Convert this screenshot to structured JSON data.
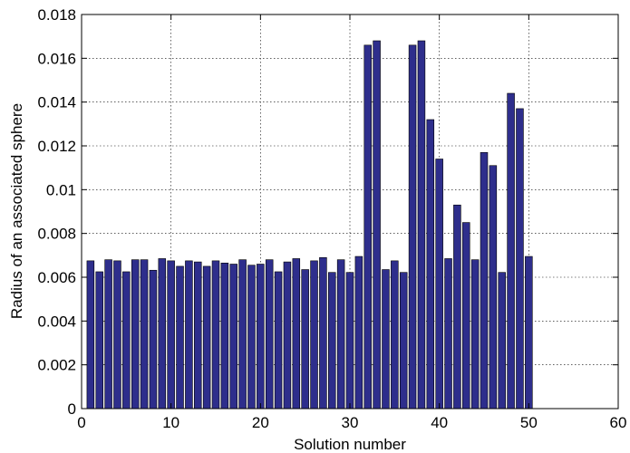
{
  "chart_data": {
    "type": "bar",
    "title": "",
    "xlabel": "Solution number",
    "ylabel": "Radius of an associated sphere",
    "xlim": [
      0,
      60
    ],
    "ylim": [
      0,
      0.018
    ],
    "grid": true,
    "bar_color": "#2e2e8c",
    "x": [
      1,
      2,
      3,
      4,
      5,
      6,
      7,
      8,
      9,
      10,
      11,
      12,
      13,
      14,
      15,
      16,
      17,
      18,
      19,
      20,
      21,
      22,
      23,
      24,
      25,
      26,
      27,
      28,
      29,
      30,
      31,
      32,
      33,
      34,
      35,
      36,
      37,
      38,
      39,
      40,
      41,
      42,
      43,
      44,
      45,
      46,
      47,
      48,
      49,
      50
    ],
    "values": [
      0.00675,
      0.00625,
      0.0068,
      0.00675,
      0.00625,
      0.0068,
      0.0068,
      0.00632,
      0.00685,
      0.00675,
      0.0065,
      0.00675,
      0.0067,
      0.0065,
      0.00675,
      0.00665,
      0.0066,
      0.0068,
      0.00655,
      0.0066,
      0.0068,
      0.00625,
      0.0067,
      0.00685,
      0.00635,
      0.00675,
      0.0069,
      0.00622,
      0.0068,
      0.00622,
      0.00695,
      0.0166,
      0.0168,
      0.00635,
      0.00675,
      0.00622,
      0.0166,
      0.0168,
      0.0132,
      0.0114,
      0.00685,
      0.0093,
      0.0085,
      0.0068,
      0.0117,
      0.0111,
      0.00622,
      0.0144,
      0.0137,
      0.00695
    ],
    "x_ticks": [
      "0",
      "10",
      "20",
      "30",
      "40",
      "50",
      "60"
    ],
    "y_ticks": [
      "0",
      "0.002",
      "0.004",
      "0.006",
      "0.008",
      "0.01",
      "0.012",
      "0.014",
      "0.016",
      "0.018"
    ]
  }
}
